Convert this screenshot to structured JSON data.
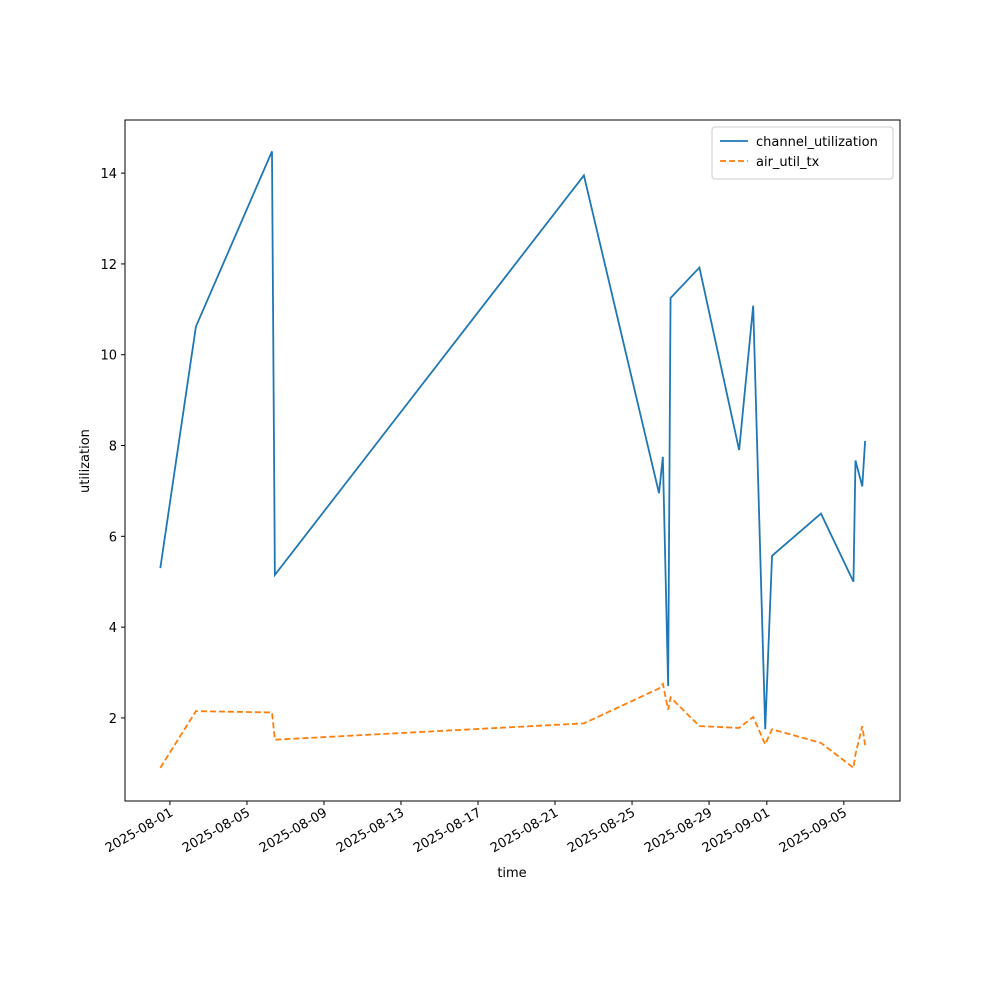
{
  "chart_data": {
    "type": "line",
    "xlabel": "time",
    "ylabel": "utilization",
    "x": [
      "2025-07-31T12:00",
      "2025-08-02T08:24",
      "2025-08-06T07:12",
      "2025-08-06T10:48",
      "2025-08-22T12:00",
      "2025-08-26T09:36",
      "2025-08-26T14:24",
      "2025-08-26T21:00",
      "2025-08-27T00:00",
      "2025-08-28T12:00",
      "2025-08-30T13:30",
      "2025-08-31T07:00",
      "2025-08-31T22:00",
      "2025-09-01T06:30",
      "2025-09-03T19:30",
      "2025-09-05T12:00",
      "2025-09-05T14:30",
      "2025-09-05T23:00",
      "2025-09-06T02:30"
    ],
    "series": [
      {
        "name": "channel_utilization",
        "color": "#1f77b4",
        "dash": "solid",
        "values": [
          5.3,
          10.62,
          14.48,
          5.15,
          13.95,
          6.95,
          7.75,
          2.7,
          11.25,
          11.92,
          7.9,
          11.08,
          1.75,
          5.57,
          6.5,
          5.0,
          7.67,
          7.1,
          8.1
        ]
      },
      {
        "name": "air_util_tx",
        "color": "#ff7f0e",
        "dash": "dashed",
        "values": [
          0.9,
          2.15,
          2.12,
          1.52,
          1.88,
          2.65,
          2.75,
          2.18,
          2.45,
          1.82,
          1.78,
          2.02,
          1.42,
          1.75,
          1.45,
          0.9,
          1.2,
          1.82,
          1.4
        ]
      }
    ],
    "xlim": [
      "2025-07-29T16:00",
      "2025-09-07T22:00"
    ],
    "xticks": [
      "2025-08-01",
      "2025-08-05",
      "2025-08-09",
      "2025-08-13",
      "2025-08-17",
      "2025-08-21",
      "2025-08-25",
      "2025-08-29",
      "2025-09-01",
      "2025-09-05"
    ],
    "ylim": [
      0.17,
      15.17
    ],
    "yticks": [
      2,
      4,
      6,
      8,
      10,
      12,
      14
    ],
    "grid": false,
    "legend": "upper right"
  }
}
